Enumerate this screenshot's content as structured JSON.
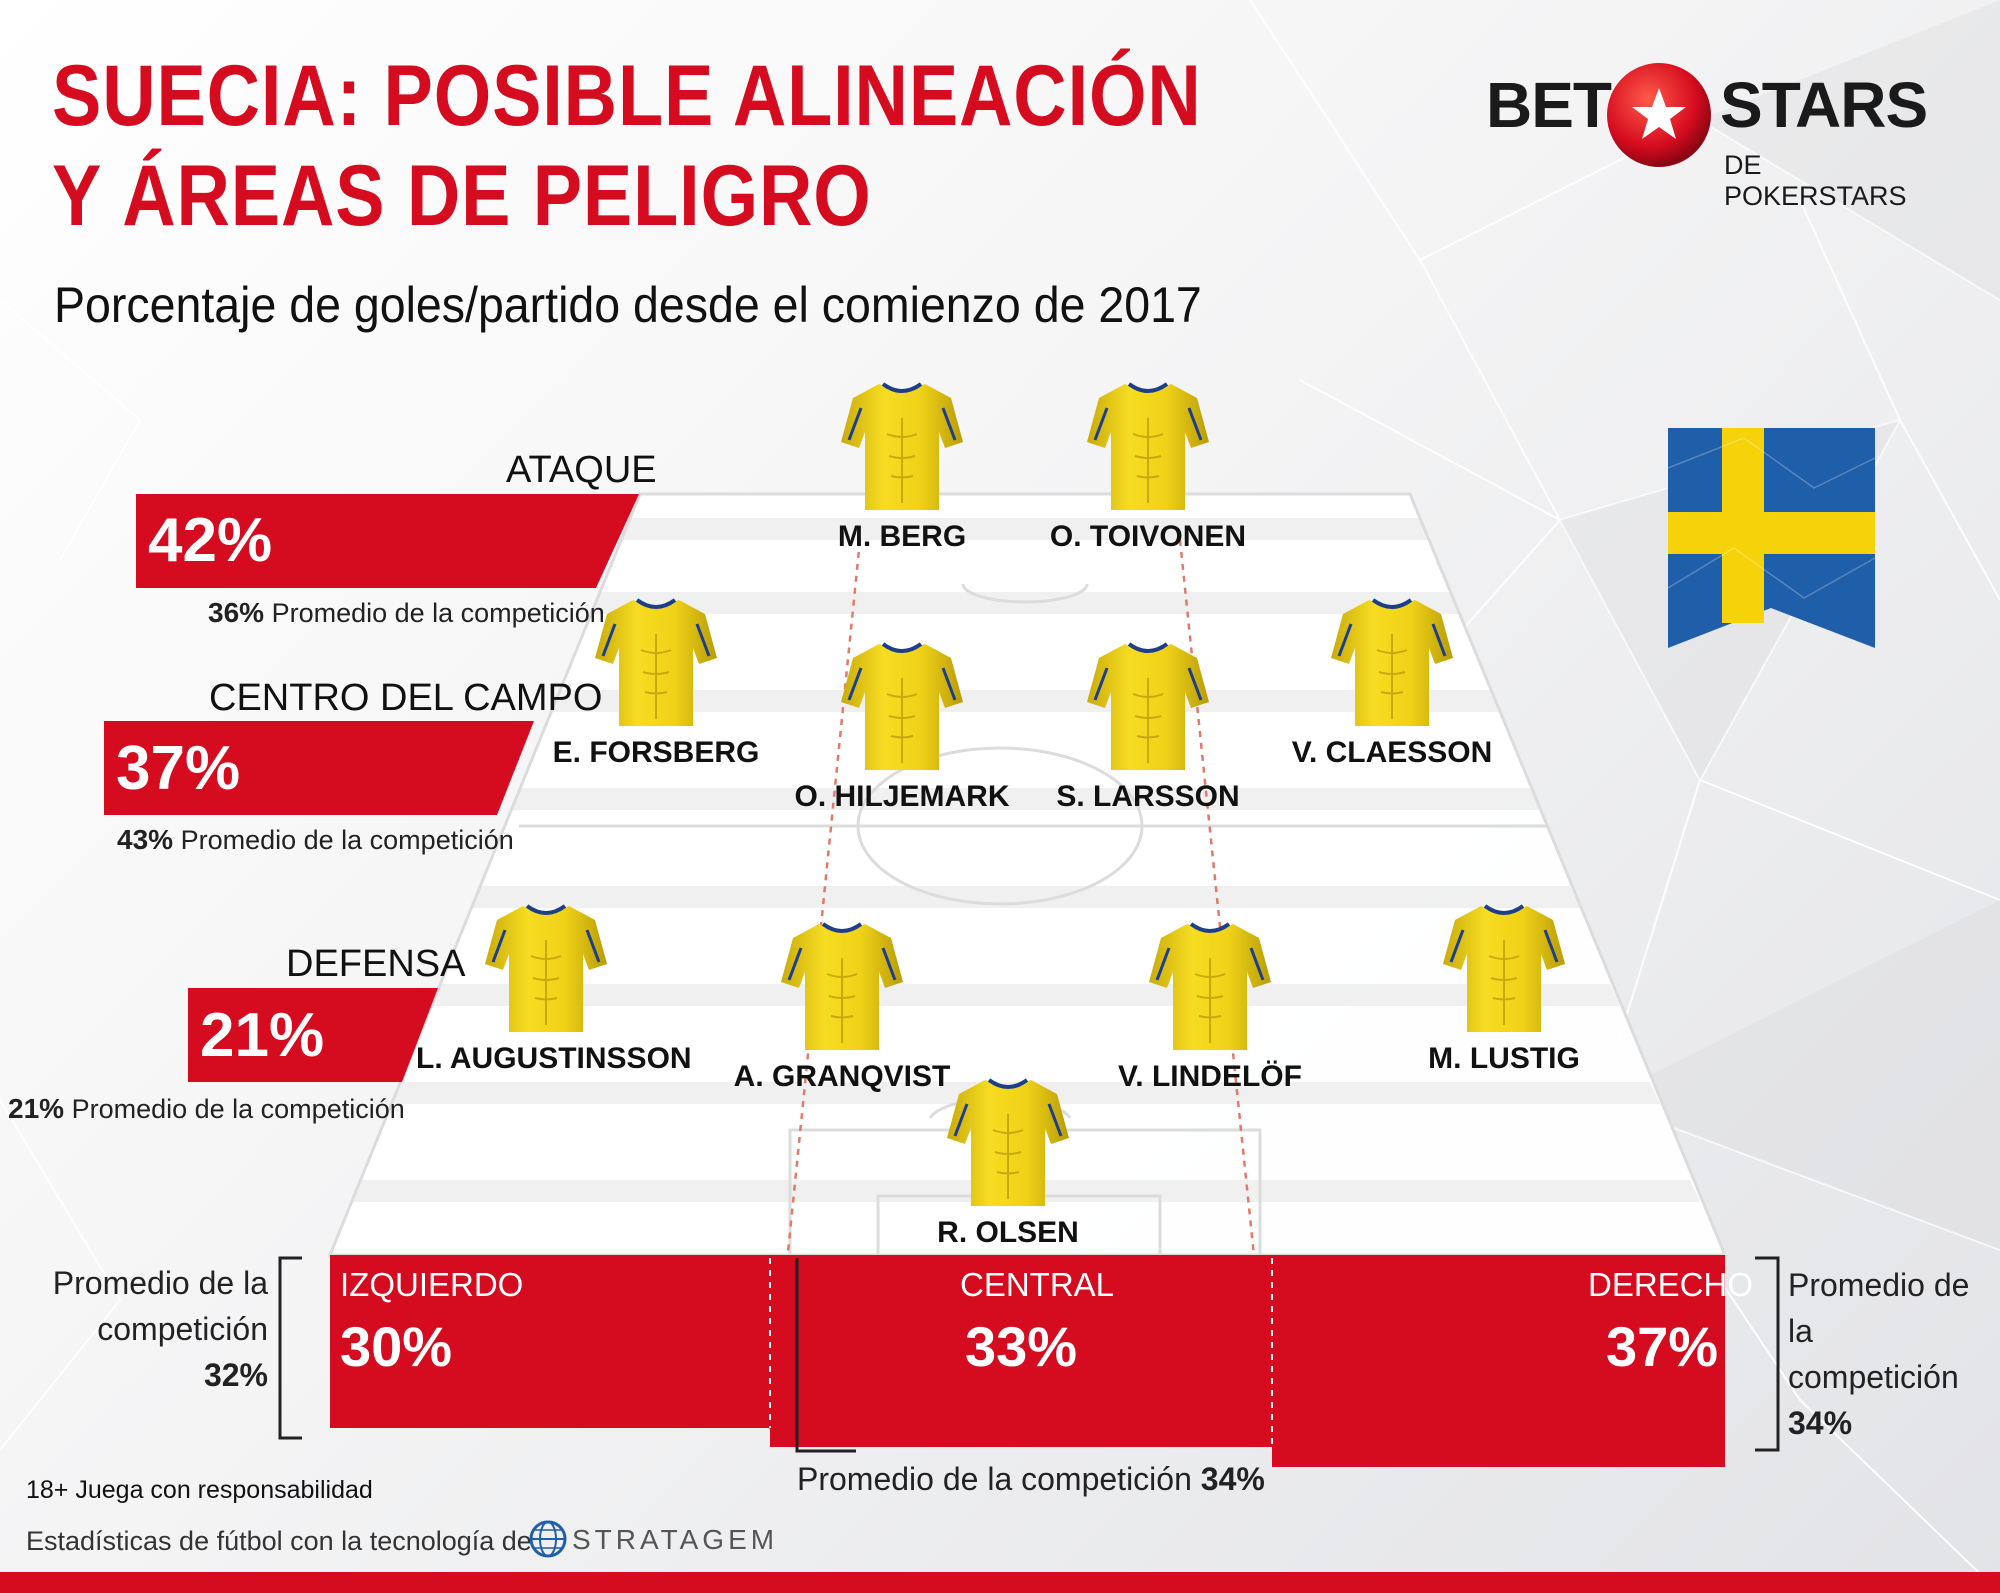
{
  "header": {
    "title_line1": "SUECIA: POSIBLE ALINEACIÓN",
    "title_line2": "Y ÁREAS DE PELIGRO",
    "subtitle": "Porcentaje de goles/partido desde el comienzo de 2017"
  },
  "logo": {
    "bet": "BET",
    "stars": "STARS",
    "sub": "DE POKERSTARS"
  },
  "zones": {
    "ataque": {
      "label": "ATAQUE",
      "value": "42%",
      "avg_value": "36%",
      "avg_text": "Promedio de la competición"
    },
    "centro": {
      "label": "CENTRO DEL CAMPO",
      "value": "37%",
      "avg_value": "43%",
      "avg_text": "Promedio de la competición"
    },
    "defensa": {
      "label": "DEFENSA",
      "value": "21%",
      "avg_value": "21%",
      "avg_text": "Promedio de la competición"
    }
  },
  "players": {
    "berg": "M. BERG",
    "toivonen": "O. TOIVONEN",
    "forsberg": "E. FORSBERG",
    "hiljemark": "O. HILJEMARK",
    "larsson": "S. LARSSON",
    "claesson": "V. CLAESSON",
    "augustinsson": "L. AUGUSTINSSON",
    "granqvist": "A. GRANQVIST",
    "lindelof": "V. LINDELÖF",
    "lustig": "M. LUSTIG",
    "olsen": "R. OLSEN"
  },
  "sides": {
    "izquierdo": {
      "title": "IZQUIERDO",
      "value": "30%"
    },
    "central": {
      "title": "CENTRAL",
      "value": "33%"
    },
    "derecho": {
      "title": "DERECHO",
      "value": "37%"
    },
    "left_avg_line1": "Promedio de la",
    "left_avg_line2": "competición",
    "left_avg_value": "32%",
    "right_avg_line1": "Promedio de la",
    "right_avg_line2": "competición",
    "right_avg_value": "34%",
    "central_avg_text": "Promedio de la competición",
    "central_avg_value": "34%"
  },
  "footer": {
    "responsible": "18+ Juega con responsabilidad",
    "powered": "Estadísticas de fútbol con la tecnología de",
    "stratagem": "STRATAGEM"
  },
  "colors": {
    "accent": "#d50b1f",
    "jersey": "#f2d417",
    "flag_blue": "#1f5ea8",
    "flag_yellow": "#f5d20a"
  }
}
